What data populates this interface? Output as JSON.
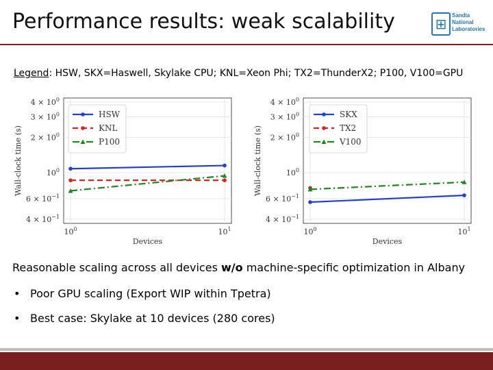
{
  "slide": {
    "title": "Performance results: weak scalability",
    "logo_text": [
      "Sandia",
      "National",
      "Laboratories"
    ],
    "legend_note_label": "Legend",
    "legend_note_text": ": HSW, SKX=Haswell, Skylake CPU; KNL=Xeon Phi; TX2=ThunderX2; P100, V100=GPU",
    "summary_pre": "Reasonable scaling across all devices ",
    "summary_bold": "w/o",
    "summary_post": " machine-specific optimization in Albany",
    "bullets": [
      "Poor GPU scaling (Export WIP within Tpetra)",
      "Best case: Skylake at 10 devices (280 cores)"
    ],
    "bullet_symbol": "•"
  },
  "chart_data": [
    {
      "type": "line",
      "xscale": "log",
      "yscale": "log",
      "xlabel": "Devices",
      "ylabel": "Wall-clock time (s)",
      "xlim": [
        1,
        10
      ],
      "ylim": [
        0.4,
        4
      ],
      "xticks": [
        {
          "v": 1,
          "b": "10",
          "e": "0"
        },
        {
          "v": 10,
          "b": "10",
          "e": "1"
        }
      ],
      "yticks": [
        {
          "v": 4,
          "t": "4 × 10",
          "e": "0"
        },
        {
          "v": 3,
          "t": "3 × 10",
          "e": "0"
        },
        {
          "v": 2,
          "t": "2 × 10",
          "e": "0"
        },
        {
          "v": 1,
          "t": "10",
          "e": "0"
        },
        {
          "v": 0.6,
          "t": "6 × 10",
          "e": "−1"
        },
        {
          "v": 0.4,
          "t": "4 × 10",
          "e": "−1"
        }
      ],
      "grid": true,
      "legend_position": "top-left",
      "series": [
        {
          "name": "HSW",
          "color": "#1f3fd6",
          "dash": "",
          "marker": "circle",
          "x": [
            1,
            10
          ],
          "y": [
            1.08,
            1.15
          ]
        },
        {
          "name": "KNL",
          "color": "#e02020",
          "dash": "8,5",
          "marker": "circle",
          "x": [
            1,
            10
          ],
          "y": [
            0.86,
            0.86
          ]
        },
        {
          "name": "P100",
          "color": "#1a8a1a",
          "dash": "10,4,2,4",
          "marker": "triangle",
          "x": [
            1,
            10
          ],
          "y": [
            0.7,
            0.94
          ]
        }
      ]
    },
    {
      "type": "line",
      "xscale": "log",
      "yscale": "log",
      "xlabel": "Devices",
      "ylabel": "Wall-clock time (s)",
      "xlim": [
        1,
        10
      ],
      "ylim": [
        0.4,
        4
      ],
      "xticks": [
        {
          "v": 1,
          "b": "10",
          "e": "0"
        },
        {
          "v": 10,
          "b": "10",
          "e": "1"
        }
      ],
      "yticks": [
        {
          "v": 4,
          "t": "4 × 10",
          "e": "0"
        },
        {
          "v": 3,
          "t": "3 × 10",
          "e": "0"
        },
        {
          "v": 2,
          "t": "2 × 10",
          "e": "0"
        },
        {
          "v": 1,
          "t": "10",
          "e": "0"
        },
        {
          "v": 0.6,
          "t": "6 × 10",
          "e": "−1"
        },
        {
          "v": 0.4,
          "t": "4 × 10",
          "e": "−1"
        }
      ],
      "grid": true,
      "legend_position": "top-right",
      "series": [
        {
          "name": "SKX",
          "color": "#1f3fd6",
          "dash": "",
          "marker": "circle",
          "x": [
            1,
            10
          ],
          "y": [
            0.56,
            0.64
          ]
        },
        {
          "name": "TX2",
          "color": "#e02020",
          "dash": "8,5",
          "marker": "circle",
          "x": [
            1
          ],
          "y": [
            0.74
          ]
        },
        {
          "name": "V100",
          "color": "#1a8a1a",
          "dash": "10,4,2,4",
          "marker": "triangle",
          "x": [
            1,
            10
          ],
          "y": [
            0.72,
            0.83
          ]
        }
      ]
    }
  ]
}
